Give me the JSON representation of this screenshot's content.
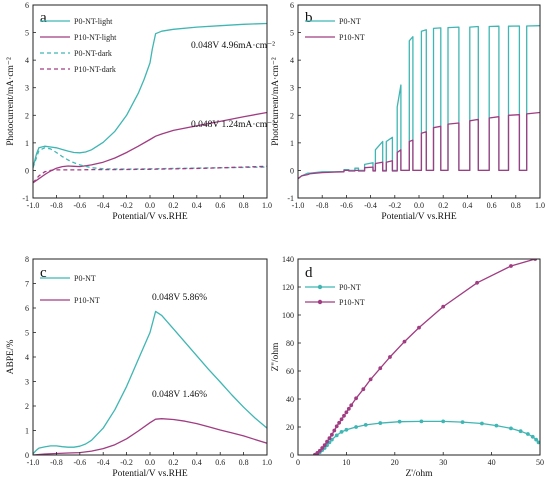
{
  "colors": {
    "p0": "#3fb6b3",
    "p10": "#a03c82",
    "axis": "#222222"
  },
  "chart_data": [
    {
      "panel": "a",
      "type": "line",
      "xlabel": "Potential/V vs.RHE",
      "ylabel": "Photocurrent/mA·cm⁻²",
      "xlim": [
        -1.0,
        1.0
      ],
      "ylim": [
        -1,
        6
      ],
      "xticks": [
        "-1.0",
        "-0.8",
        "-0.6",
        "-0.4",
        "-0.2",
        "0.0",
        "0.2",
        "0.4",
        "0.6",
        "0.8",
        "1.0"
      ],
      "yticks": [
        "-1",
        "0",
        "1",
        "2",
        "3",
        "4",
        "5",
        "6"
      ],
      "legend": [
        "P0-NT-light",
        "P10-NT-light",
        "P0-NT-dark",
        "P10-NT-dark"
      ],
      "annotations": [
        "0.048V  4.96mA·cm⁻²",
        "0.048V  1.24mA·cm⁻²"
      ],
      "series": [
        {
          "name": "P0-NT-light",
          "color": "p0",
          "dash": false,
          "x": [
            -1.0,
            -0.97,
            -0.95,
            -0.9,
            -0.85,
            -0.8,
            -0.75,
            -0.7,
            -0.65,
            -0.6,
            -0.55,
            -0.5,
            -0.4,
            -0.3,
            -0.2,
            -0.1,
            -0.05,
            0.0,
            0.02,
            0.048,
            0.1,
            0.2,
            0.4,
            0.6,
            0.8,
            1.0
          ],
          "y": [
            0.1,
            0.6,
            0.82,
            0.88,
            0.85,
            0.82,
            0.76,
            0.7,
            0.65,
            0.64,
            0.67,
            0.75,
            1.02,
            1.42,
            2.0,
            2.8,
            3.3,
            3.9,
            4.4,
            4.96,
            5.05,
            5.12,
            5.2,
            5.25,
            5.3,
            5.33
          ]
        },
        {
          "name": "P10-NT-light",
          "color": "p10",
          "dash": false,
          "x": [
            -1.0,
            -0.95,
            -0.9,
            -0.85,
            -0.8,
            -0.75,
            -0.7,
            -0.65,
            -0.6,
            -0.5,
            -0.4,
            -0.3,
            -0.2,
            -0.1,
            0.0,
            0.048,
            0.1,
            0.2,
            0.4,
            0.6,
            0.8,
            1.0
          ],
          "y": [
            -0.45,
            -0.3,
            -0.15,
            -0.02,
            0.08,
            0.14,
            0.16,
            0.15,
            0.14,
            0.2,
            0.3,
            0.45,
            0.65,
            0.88,
            1.12,
            1.24,
            1.32,
            1.45,
            1.62,
            1.78,
            1.95,
            2.1
          ]
        },
        {
          "name": "P0-NT-dark",
          "color": "p0",
          "dash": true,
          "x": [
            -1.0,
            -0.95,
            -0.9,
            -0.85,
            -0.8,
            -0.75,
            -0.7,
            -0.65,
            -0.6,
            -0.5,
            -0.4,
            -0.2,
            0.0,
            0.5,
            1.0
          ],
          "y": [
            0.1,
            0.72,
            0.82,
            0.78,
            0.65,
            0.5,
            0.38,
            0.28,
            0.2,
            0.1,
            0.06,
            0.05,
            0.06,
            0.09,
            0.12
          ]
        },
        {
          "name": "P10-NT-dark",
          "color": "p10",
          "dash": true,
          "x": [
            -1.0,
            -0.95,
            -0.9,
            -0.85,
            -0.8,
            -0.7,
            -0.6,
            -0.5,
            -0.3,
            0.0,
            0.5,
            1.0
          ],
          "y": [
            -0.45,
            -0.2,
            -0.05,
            0.0,
            0.02,
            0.02,
            0.02,
            0.03,
            0.03,
            0.04,
            0.08,
            0.15
          ]
        }
      ]
    },
    {
      "panel": "b",
      "type": "line",
      "xlabel": "Potential/V vs.RHE",
      "ylabel": "Photocurrent/mA·cm⁻²",
      "xlim": [
        -1.0,
        1.0
      ],
      "ylim": [
        -1,
        6
      ],
      "xticks": [
        "-1.0",
        "-0.8",
        "-0.6",
        "-0.4",
        "-0.2",
        "0.0",
        "0.2",
        "0.4",
        "0.6",
        "0.8",
        "1.0"
      ],
      "yticks": [
        "-1",
        "0",
        "1",
        "2",
        "3",
        "4",
        "5",
        "6"
      ],
      "legend": [
        "P0-NT",
        "P10-NT"
      ],
      "series": [
        {
          "name": "P0-NT",
          "color": "p0",
          "x": [
            -1.0,
            -0.97,
            -0.92,
            -0.9,
            -0.8,
            -0.7,
            -0.62,
            -0.62,
            -0.58,
            -0.58,
            -0.53,
            -0.53,
            -0.5,
            -0.5,
            -0.45,
            -0.45,
            -0.38,
            -0.38,
            -0.36,
            -0.36,
            -0.3,
            -0.3,
            -0.27,
            -0.27,
            -0.22,
            -0.22,
            -0.18,
            -0.18,
            -0.15,
            -0.15,
            -0.08,
            -0.08,
            -0.05,
            -0.05,
            0.02,
            0.02,
            0.06,
            0.06,
            0.12,
            0.12,
            0.18,
            0.18,
            0.24,
            0.24,
            0.33,
            0.33,
            0.42,
            0.42,
            0.49,
            0.49,
            0.58,
            0.58,
            0.66,
            0.66,
            0.74,
            0.74,
            0.83,
            0.83,
            0.89,
            0.89,
            1.0
          ],
          "y": [
            -0.3,
            -0.2,
            -0.1,
            -0.1,
            -0.05,
            -0.05,
            -0.04,
            0.03,
            0.03,
            0.0,
            0.0,
            0.08,
            0.08,
            0.0,
            0.0,
            0.22,
            0.28,
            0.0,
            0.0,
            0.75,
            1.05,
            0.0,
            0.0,
            1.05,
            1.2,
            0.0,
            0.0,
            2.3,
            3.1,
            0.0,
            0.0,
            4.7,
            4.85,
            0.0,
            0.0,
            5.05,
            5.1,
            0.0,
            0.0,
            5.15,
            5.17,
            0.0,
            0.0,
            5.18,
            5.2,
            0.0,
            0.0,
            5.2,
            5.22,
            0.0,
            0.0,
            5.22,
            5.23,
            0.0,
            0.0,
            5.23,
            5.24,
            0.0,
            0.0,
            5.24,
            5.25
          ]
        },
        {
          "name": "P10-NT",
          "color": "p10",
          "x": [
            -1.0,
            -0.97,
            -0.92,
            -0.9,
            -0.8,
            -0.7,
            -0.62,
            -0.62,
            -0.58,
            -0.58,
            -0.53,
            -0.53,
            -0.5,
            -0.5,
            -0.45,
            -0.45,
            -0.38,
            -0.38,
            -0.36,
            -0.36,
            -0.3,
            -0.3,
            -0.27,
            -0.27,
            -0.22,
            -0.22,
            -0.18,
            -0.18,
            -0.15,
            -0.15,
            -0.08,
            -0.08,
            -0.05,
            -0.05,
            0.02,
            0.02,
            0.06,
            0.06,
            0.12,
            0.12,
            0.18,
            0.18,
            0.24,
            0.24,
            0.33,
            0.33,
            0.42,
            0.42,
            0.49,
            0.49,
            0.58,
            0.58,
            0.66,
            0.66,
            0.74,
            0.74,
            0.83,
            0.83,
            0.89,
            0.89,
            1.0
          ],
          "y": [
            -0.3,
            -0.2,
            -0.15,
            -0.12,
            -0.08,
            -0.06,
            -0.05,
            0.0,
            0.0,
            -0.02,
            -0.02,
            0.0,
            0.0,
            -0.02,
            -0.02,
            0.1,
            0.12,
            -0.02,
            -0.02,
            0.25,
            0.3,
            -0.02,
            -0.02,
            0.3,
            0.35,
            -0.02,
            -0.02,
            0.65,
            0.75,
            0.0,
            0.0,
            1.05,
            1.1,
            0.0,
            0.0,
            1.35,
            1.4,
            0.0,
            0.0,
            1.55,
            1.6,
            0.0,
            0.0,
            1.68,
            1.72,
            0.0,
            0.0,
            1.8,
            1.85,
            0.0,
            0.0,
            1.9,
            1.95,
            0.0,
            0.0,
            2.0,
            2.02,
            0.0,
            0.0,
            2.05,
            2.1
          ]
        }
      ]
    },
    {
      "panel": "c",
      "type": "line",
      "xlabel": "Potential/V vs.RHE",
      "ylabel": "ABPE/%",
      "xlim": [
        -1.0,
        1.0
      ],
      "ylim": [
        0,
        8
      ],
      "xticks": [
        "-1.0",
        "-0.8",
        "-0.6",
        "-0.4",
        "-0.2",
        "0.0",
        "0.2",
        "0.4",
        "0.6",
        "0.8",
        "1.0"
      ],
      "yticks": [
        "0",
        "1",
        "2",
        "3",
        "4",
        "5",
        "6",
        "7",
        "8"
      ],
      "legend": [
        "P0-NT",
        "P10-NT"
      ],
      "annotations": [
        "0.048V  5.86%",
        "0.048V  1.46%"
      ],
      "series": [
        {
          "name": "P0-NT",
          "color": "p0",
          "x": [
            -1.0,
            -0.97,
            -0.95,
            -0.9,
            -0.85,
            -0.8,
            -0.75,
            -0.7,
            -0.65,
            -0.6,
            -0.55,
            -0.5,
            -0.4,
            -0.3,
            -0.2,
            -0.1,
            0.0,
            0.048,
            0.1,
            0.2,
            0.3,
            0.4,
            0.5,
            0.6,
            0.7,
            0.8,
            0.9,
            1.0
          ],
          "y": [
            0.05,
            0.2,
            0.28,
            0.33,
            0.37,
            0.37,
            0.34,
            0.32,
            0.32,
            0.36,
            0.45,
            0.6,
            1.1,
            1.85,
            2.8,
            3.9,
            5.0,
            5.86,
            5.7,
            5.15,
            4.6,
            4.05,
            3.5,
            2.98,
            2.45,
            1.95,
            1.5,
            1.1
          ]
        },
        {
          "name": "P10-NT",
          "color": "p10",
          "x": [
            -1.0,
            -0.95,
            -0.9,
            -0.8,
            -0.7,
            -0.6,
            -0.5,
            -0.4,
            -0.3,
            -0.2,
            -0.1,
            0.0,
            0.048,
            0.1,
            0.2,
            0.3,
            0.4,
            0.5,
            0.6,
            0.7,
            0.8,
            0.9,
            1.0
          ],
          "y": [
            0.0,
            0.02,
            0.04,
            0.06,
            0.08,
            0.1,
            0.16,
            0.26,
            0.42,
            0.66,
            0.98,
            1.32,
            1.46,
            1.48,
            1.45,
            1.38,
            1.28,
            1.15,
            1.02,
            0.9,
            0.78,
            0.63,
            0.48
          ]
        }
      ]
    },
    {
      "panel": "d",
      "type": "scatter",
      "xlabel": "Z'/ohm",
      "ylabel": "Z''/ohm",
      "xlim": [
        0,
        50
      ],
      "ylim": [
        0,
        140
      ],
      "xticks": [
        "0",
        "10",
        "20",
        "30",
        "40",
        "50"
      ],
      "yticks": [
        "0",
        "20",
        "40",
        "60",
        "80",
        "100",
        "120",
        "140"
      ],
      "legend": [
        "P0-NT",
        "P10-NT"
      ],
      "series": [
        {
          "name": "P0-NT",
          "color": "p0",
          "x": [
            3.5,
            4.0,
            4.5,
            5.0,
            5.5,
            6.0,
            6.5,
            7.0,
            8.0,
            9.0,
            10.0,
            12.0,
            14.0,
            17.0,
            21.0,
            25.5,
            30.0,
            34.0,
            38.0,
            41.0,
            44.0,
            46.0,
            47.5,
            48.5,
            49.2,
            49.7
          ],
          "y": [
            0.2,
            1.0,
            2.0,
            3.5,
            5.0,
            7.0,
            9.0,
            11.0,
            14.0,
            16.5,
            18.0,
            20.0,
            21.5,
            22.8,
            23.8,
            24.0,
            24.0,
            23.5,
            22.5,
            21.0,
            19.0,
            17.0,
            15.0,
            13.0,
            11.0,
            9.0
          ]
        },
        {
          "name": "P10-NT",
          "color": "p10",
          "x": [
            3.5,
            4.0,
            4.5,
            5.0,
            5.5,
            6.0,
            6.5,
            7.0,
            7.5,
            8.0,
            8.5,
            9.0,
            9.5,
            10.0,
            10.5,
            11.0,
            12.0,
            13.5,
            15.0,
            17.0,
            19.0,
            22.0,
            25.0,
            30.0,
            37.0,
            44.0,
            49.0
          ],
          "y": [
            0.2,
            1.5,
            3.0,
            5.0,
            7.0,
            9.5,
            12.0,
            14.5,
            17.5,
            20.5,
            23.0,
            25.5,
            28.0,
            30.5,
            33.0,
            35.5,
            40.5,
            47.0,
            54.0,
            62.0,
            70.0,
            81.0,
            91.0,
            106.0,
            123.0,
            135.0,
            140.0
          ]
        }
      ]
    }
  ]
}
